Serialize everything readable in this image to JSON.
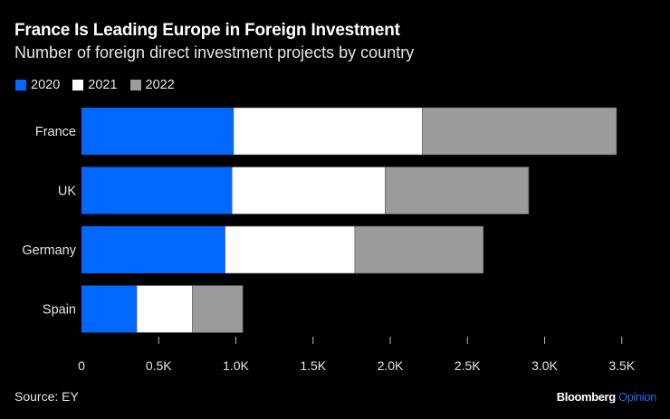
{
  "chart_data": {
    "type": "bar",
    "orientation": "horizontal",
    "stacked": true,
    "title": "France Is Leading Europe in Foreign Investment",
    "subtitle": "Number of foreign direct investment projects by country",
    "categories": [
      "France",
      "UK",
      "Germany",
      "Spain"
    ],
    "series": [
      {
        "name": "2020",
        "color": "#0068ff",
        "values": [
          985,
          975,
          930,
          358
        ]
      },
      {
        "name": "2021",
        "color": "#ffffff",
        "values": [
          1222,
          993,
          841,
          361
        ]
      },
      {
        "name": "2022",
        "color": "#9b9b9b",
        "values": [
          1259,
          929,
          832,
          326
        ]
      }
    ],
    "xlabel": "",
    "ylabel": "",
    "xlim": [
      0,
      3600
    ],
    "xticks": [
      0,
      500,
      1000,
      1500,
      2000,
      2500,
      3000,
      3500
    ],
    "xtick_labels": [
      "0",
      "0.5K",
      "1.0K",
      "1.5K",
      "2.0K",
      "2.5K",
      "3.0K",
      "3.5K"
    ],
    "grid": false,
    "legend_position": "top-left"
  },
  "footer": {
    "source": "Source: EY",
    "brand_main": "Bloomberg",
    "brand_accent": "Opinion"
  }
}
